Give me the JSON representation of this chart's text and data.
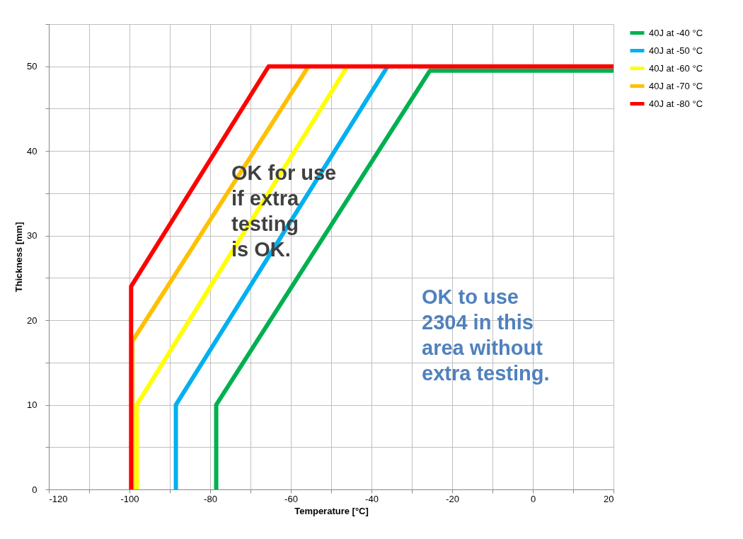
{
  "chart_data": {
    "type": "line",
    "xlabel": "Temperature [°C]",
    "ylabel": "Thickness [mm]",
    "xlim": [
      -120,
      20
    ],
    "ylim": [
      0,
      55
    ],
    "xticks": [
      -120,
      {
        "value": -110,
        "label": null
      },
      -100,
      {
        "value": -90,
        "label": null
      },
      -80,
      {
        "value": -70,
        "label": null
      },
      -60,
      {
        "value": -50,
        "label": null
      },
      -40,
      {
        "value": -30,
        "label": null
      },
      -20,
      {
        "value": -10,
        "label": null
      },
      0,
      {
        "value": 10,
        "label": null
      },
      20
    ],
    "yticks": [
      0,
      {
        "value": 5,
        "label": null
      },
      10,
      {
        "value": 15,
        "label": null
      },
      20,
      {
        "value": 25,
        "label": null
      },
      30,
      {
        "value": 35,
        "label": null
      },
      40,
      {
        "value": 45,
        "label": null
      },
      50,
      {
        "value": 55,
        "label": null
      }
    ],
    "grid": true,
    "legend": "right",
    "marker": "none",
    "line_style": "solid",
    "series": [
      {
        "name": "40J at -40 °C",
        "color": "#00b050",
        "x": [
          -78.5,
          -78.5,
          -25.5,
          20
        ],
        "values": [
          0,
          10,
          49.5,
          49.5
        ]
      },
      {
        "name": "40J at -50 °C",
        "color": "#00b0f0",
        "x": [
          -88.5,
          -88.5,
          -36
        ],
        "values": [
          0,
          10,
          50
        ]
      },
      {
        "name": "40J at -60 °C",
        "color": "#ffff00",
        "x": [
          -98.2,
          -98.2,
          -46
        ],
        "values": [
          0,
          10,
          50
        ]
      },
      {
        "name": "40J at -70 °C",
        "color": "#ffc000",
        "x": [
          -99.3,
          -99.3,
          -55.6
        ],
        "values": [
          0,
          17.5,
          50
        ]
      },
      {
        "name": "40J at -80 °C",
        "color": "#ff0000",
        "x": [
          -99.6,
          -99.6,
          -65.5,
          20
        ],
        "values": [
          0,
          24,
          50,
          50
        ]
      }
    ],
    "annotations": [
      "OK for use\nif extra\ntesting\nis OK.",
      "OK to use\n2304 in this\narea without\nextra testing."
    ]
  }
}
